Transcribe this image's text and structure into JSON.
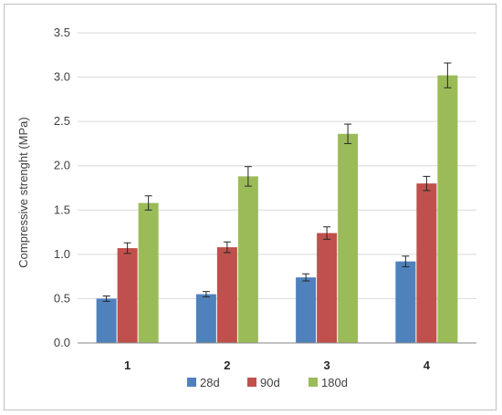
{
  "chart_data": {
    "type": "bar",
    "title": "",
    "xlabel": "",
    "ylabel": "Compressive strenght (MPa)",
    "ylim": [
      0,
      3.5
    ],
    "yticks": [
      "0.0",
      "0.5",
      "1.0",
      "1.5",
      "2.0",
      "2.5",
      "3.0",
      "3.5"
    ],
    "grid": true,
    "legend_position": "bottom",
    "categories": [
      "1",
      "2",
      "3",
      "4"
    ],
    "series": [
      {
        "name": "28d",
        "color": "#4f81bd",
        "values": [
          0.5,
          0.55,
          0.74,
          0.92
        ],
        "errors": [
          0.03,
          0.03,
          0.04,
          0.06
        ]
      },
      {
        "name": "90d",
        "color": "#c0504d",
        "values": [
          1.07,
          1.08,
          1.24,
          1.8
        ],
        "errors": [
          0.06,
          0.06,
          0.07,
          0.08
        ]
      },
      {
        "name": "180d",
        "color": "#9bbb59",
        "values": [
          1.58,
          1.88,
          2.36,
          3.02
        ],
        "errors": [
          0.08,
          0.11,
          0.11,
          0.14
        ]
      }
    ]
  }
}
